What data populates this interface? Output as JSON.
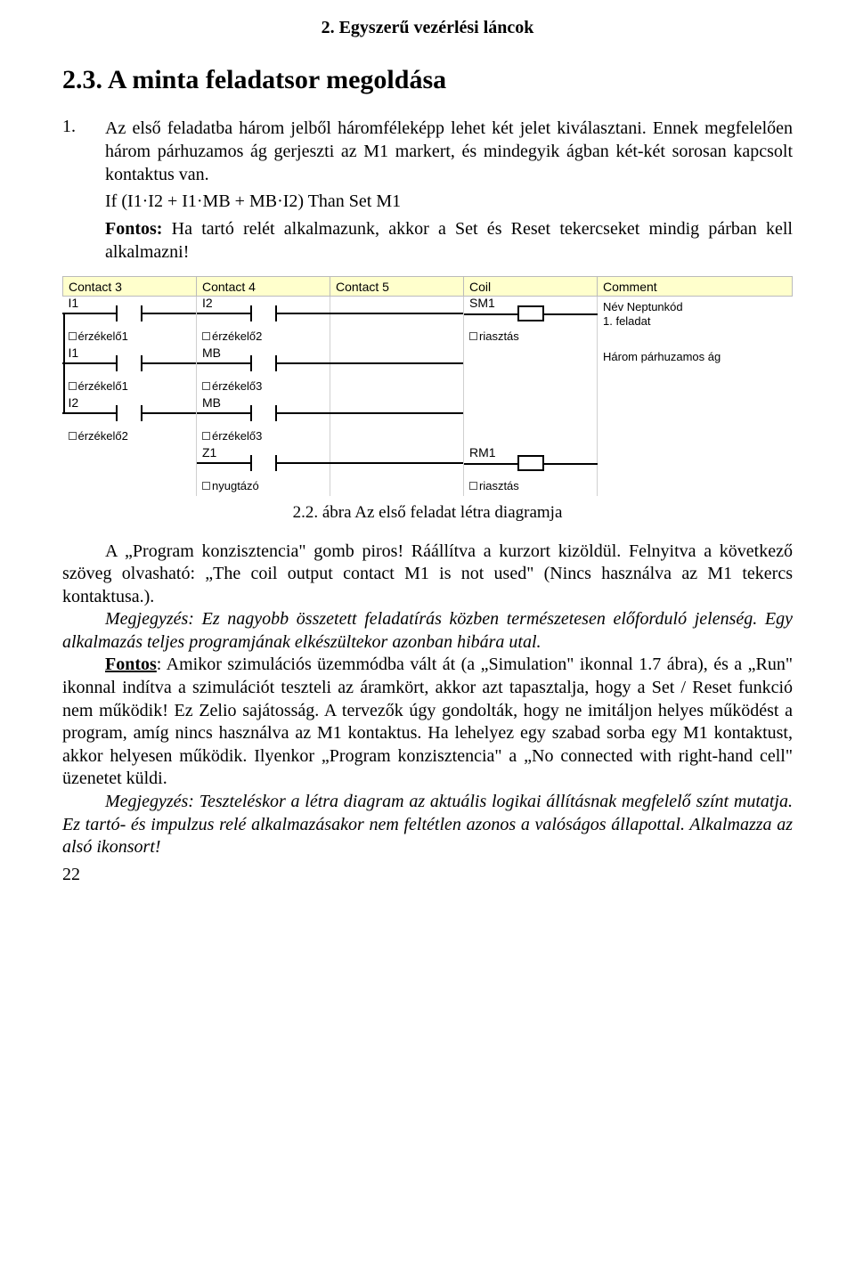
{
  "chapter_header": "2. Egyszerű vezérlési láncok",
  "section_title": "2.3. A minta feladatsor megoldása",
  "list_number": "1.",
  "p1a": "Az első feladatba három jelből háromféleképp lehet két jelet kiválasztani. Ennek megfelelően három párhuzamos ág gerjeszti az M1 markert, és mindegyik ágban két-két sorosan kapcsolt kontaktus van.",
  "formula": "If (I1·I2 + I1·MB + MB·I2) Than Set M1",
  "p1b_bold": "Fontos:",
  "p1b_rest": " Ha tartó relét alkalmazunk, akkor a Set és Reset tekercseket mindig párban kell alkalmazni!",
  "ladder": {
    "headers": [
      "Contact 3",
      "Contact 4",
      "Contact 5",
      "Coil",
      "Comment"
    ],
    "rows": [
      {
        "c3": {
          "label": "I1",
          "desc": "érzékelő1",
          "type": "contact"
        },
        "c4": {
          "label": "I2",
          "desc": "érzékelő2",
          "type": "contact"
        },
        "c5": {
          "type": "wire"
        },
        "coil": {
          "label": "SM1",
          "desc": "riasztás",
          "type": "coil"
        },
        "comment": "Név   Neptunkód\n1. feladat",
        "branch_down_c3": true
      },
      {
        "c3": {
          "label": "I1",
          "desc": "érzékelő1",
          "type": "contact"
        },
        "c4": {
          "label": "MB",
          "desc": "érzékelő3",
          "type": "contact"
        },
        "c5": {
          "type": "wire-up"
        },
        "coil": {
          "type": "none"
        },
        "comment": "Három párhuzamos ág",
        "branch_down_c3": true
      },
      {
        "c3": {
          "label": "I2",
          "desc": "érzékelő2",
          "type": "contact"
        },
        "c4": {
          "label": "MB",
          "desc": "érzékelő3",
          "type": "contact"
        },
        "c5": {
          "type": "wire-up"
        },
        "coil": {
          "type": "none"
        },
        "comment": "",
        "branch_down_c3": false
      },
      {
        "c3": {
          "type": "none"
        },
        "c4": {
          "label": "Z1",
          "desc": "nyugtázó",
          "type": "contact"
        },
        "c5": {
          "type": "wire"
        },
        "coil": {
          "label": "RM1",
          "desc": "riasztás",
          "type": "coil"
        },
        "comment": "",
        "branch_down_c3": false
      }
    ]
  },
  "caption": "2.2. ábra Az első feladat létra diagramja",
  "body": {
    "p2": "A „Program konzisztencia\" gomb piros! Ráállítva a kurzort kizöldül. Felnyitva a következő szöveg olvasható: „The coil output contact M1 is not used\" (Nincs használva az M1 tekercs kontaktusa.).",
    "p3": "Megjegyzés: Ez nagyobb összetett feladatírás közben természetesen előforduló jelenség. Egy alkalmazás teljes programjának elkészültekor azonban hibára utal.",
    "p4a": "Fontos",
    "p4b": ": Amikor szimulációs üzemmódba vált át (a „Simulation\" ikonnal 1.7 ábra), és a „Run\" ikonnal indítva a szimulációt teszteli az áramkört, akkor azt tapasztalja, hogy a Set / Reset funkció nem működik! Ez Zelio sajátosság. A tervezők úgy gondolták, hogy ne imitáljon helyes működést a program, amíg nincs használva az M1 kontaktus. Ha lehelyez egy szabad sorba egy M1 kontaktust, akkor helyesen működik. Ilyenkor „Program konzisztencia\" a „No connected with right-hand cell\" üzenetet küldi.",
    "p5": "Megjegyzés: Teszteléskor a létra diagram az aktuális logikai állításnak megfelelő színt mutatja. Ez tartó- és impulzus relé alkalmazásakor nem feltétlen azonos a valóságos állapottal. Alkalmazza az alsó ikonsort!"
  },
  "page_number": "22"
}
